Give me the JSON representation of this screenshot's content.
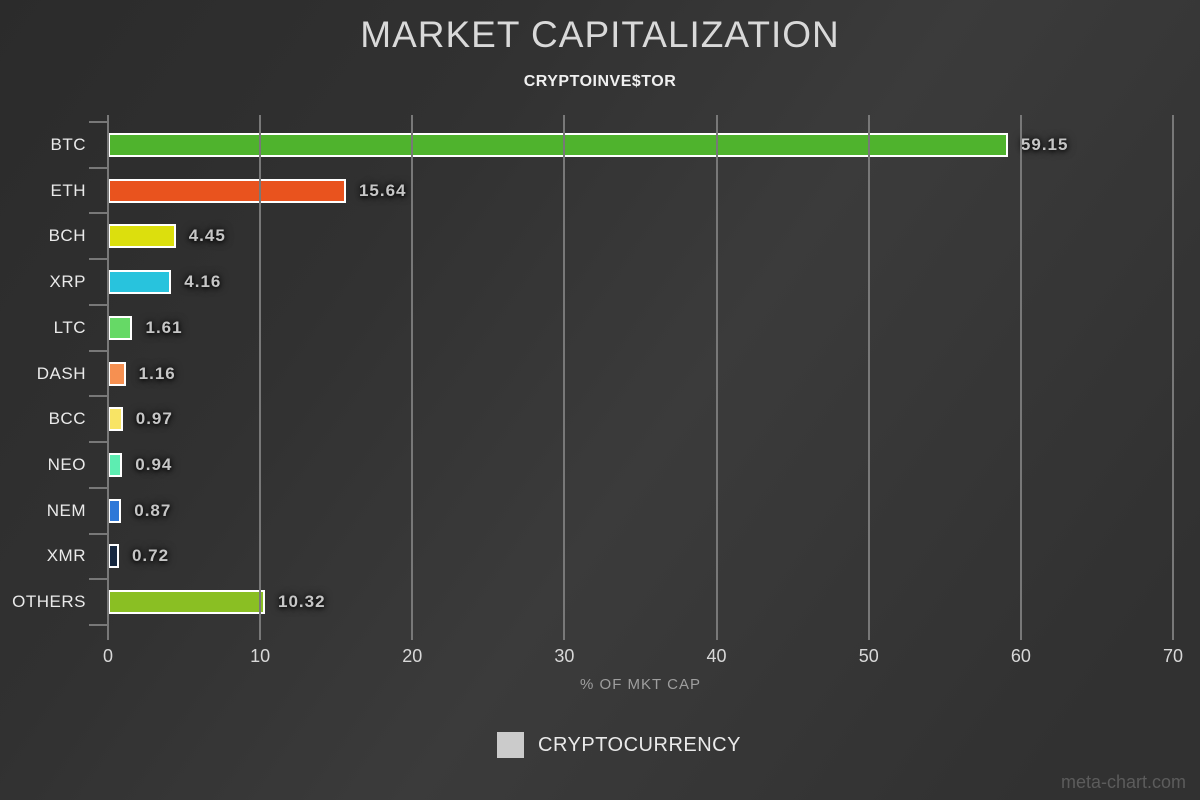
{
  "chart_data": {
    "type": "bar",
    "orientation": "horizontal",
    "title": "MARKET CAPITALIZATION",
    "subtitle": "CRYPTOINVE$TOR",
    "categories": [
      "BTC",
      "ETH",
      "BCH",
      "XRP",
      "LTC",
      "DASH",
      "BCC",
      "NEO",
      "NEM",
      "XMR",
      "OTHERS"
    ],
    "values": [
      59.15,
      15.64,
      4.45,
      4.16,
      1.61,
      1.16,
      0.97,
      0.94,
      0.87,
      0.72,
      10.32
    ],
    "value_labels": [
      "59.15",
      "15.64",
      "4.45",
      "4.16",
      "1.61",
      "1.16",
      "0.97",
      "0.94",
      "0.87",
      "0.72",
      "10.32"
    ],
    "bar_colors": [
      "#4fb32d",
      "#e9531e",
      "#dcdf0d",
      "#28c3dd",
      "#66d966",
      "#f69051",
      "#f8e465",
      "#5dedb1",
      "#2e78d8",
      "#16273f",
      "#8abf23"
    ],
    "xlabel": "% OF MKT CAP",
    "xlim": [
      0,
      70
    ],
    "x_ticks": [
      0,
      10,
      20,
      30,
      40,
      50,
      60,
      70
    ],
    "grid": true,
    "legend": {
      "label": "CRYPTOCURRENCY",
      "swatch_color": "#cbcbcb",
      "position": "bottom"
    },
    "theme": {
      "bg-a": "#2b2b2b",
      "bg-b": "#313131",
      "bg-c": "#3b3b3b",
      "bg-d": "#313131",
      "grid": "#787878"
    }
  },
  "watermark": "meta-chart.com"
}
